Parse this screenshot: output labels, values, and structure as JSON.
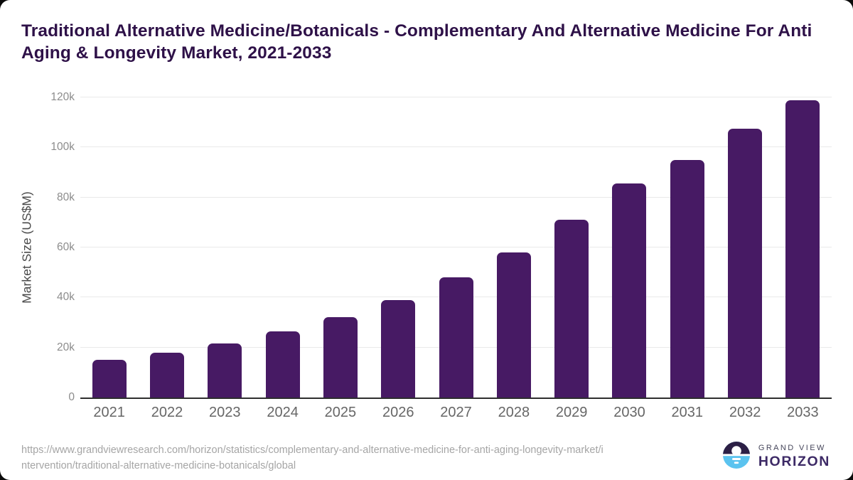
{
  "header": {
    "title": "Traditional Alternative Medicine/Botanicals - Complementary And Alternative Medicine For Anti Aging & Longevity Market, 2021-2033"
  },
  "chart_data": {
    "type": "bar",
    "title": "Traditional Alternative Medicine/Botanicals - Complementary And Alternative Medicine For Anti Aging & Longevity Market, 2021-2033",
    "categories": [
      "2021",
      "2022",
      "2023",
      "2024",
      "2025",
      "2026",
      "2027",
      "2028",
      "2029",
      "2030",
      "2031",
      "2032",
      "2033"
    ],
    "values": [
      15200,
      18000,
      21500,
      26500,
      32000,
      39000,
      48000,
      58000,
      71000,
      85500,
      95000,
      107500,
      119000
    ],
    "unit": "US$M",
    "xlabel": "",
    "ylabel": "Market Size (US$M)",
    "ylim": [
      0,
      120000
    ],
    "yticks": [
      {
        "value": 0,
        "label": "0"
      },
      {
        "value": 20000,
        "label": "20k"
      },
      {
        "value": 40000,
        "label": "40k"
      },
      {
        "value": 60000,
        "label": "60k"
      },
      {
        "value": 80000,
        "label": "80k"
      },
      {
        "value": 100000,
        "label": "100k"
      },
      {
        "value": 120000,
        "label": "120k"
      }
    ],
    "grid": true,
    "legend": false,
    "bar_color": "#471a64"
  },
  "footer": {
    "source_lines": [
      "https://www.grandviewresearch.com/horizon/statistics/complementary-and-alternative-medicine-for-anti-aging-longevity-market/i",
      "ntervention/traditional-alternative-medicine-botanicals/global"
    ]
  },
  "logo": {
    "icon": "sunset-horizon-icon",
    "grand_view": "GRAND VIEW",
    "horizon": "HORIZON"
  },
  "colors": {
    "bar": "#471a64",
    "title_text": "#2e1148",
    "gridline": "#e9e9e9",
    "axis_line": "#2e2e2e",
    "y_tick_text": "#8c8c8c",
    "x_tick_text": "#666666",
    "y_axis_title_text": "#4a4a4a",
    "source_text": "#a5a5a5",
    "logo_dark": "#2c1f45",
    "logo_blue": "#5bc3ef",
    "logo_horizon_text": "#3d2a66"
  }
}
